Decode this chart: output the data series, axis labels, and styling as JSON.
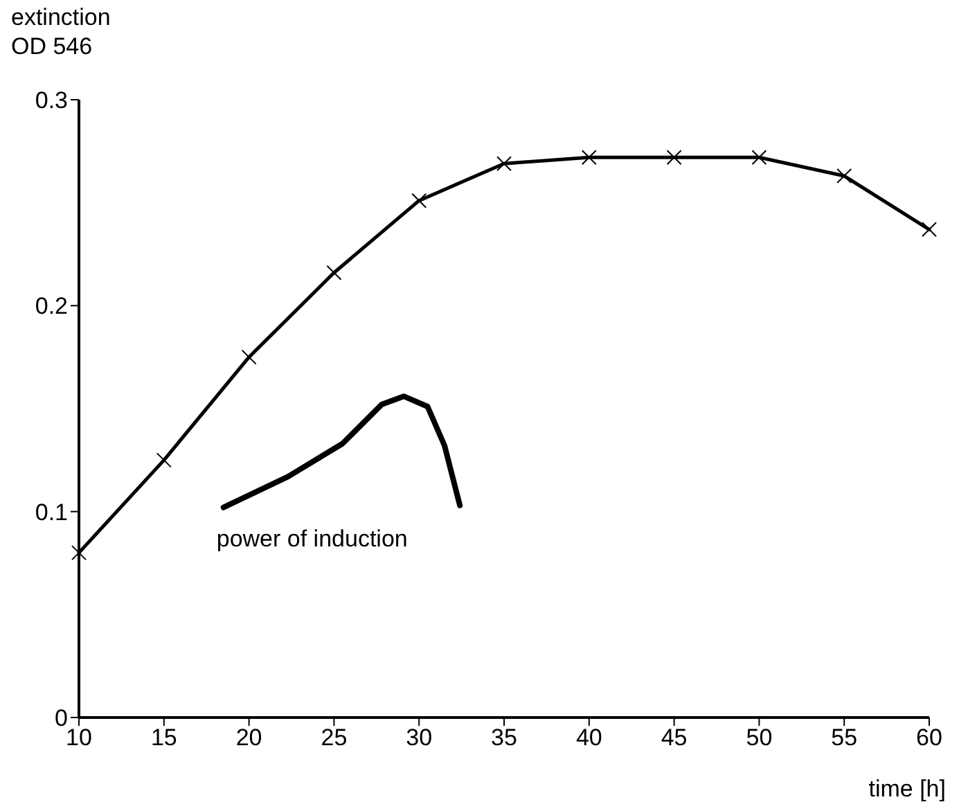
{
  "chart_data": {
    "type": "line",
    "ylabel": "extinction OD 546",
    "xlabel": "time [h]",
    "xlim": [
      10,
      60
    ],
    "xticks": [
      10,
      15,
      20,
      25,
      30,
      35,
      40,
      45,
      50,
      55,
      60
    ],
    "ylim": [
      0,
      0.3
    ],
    "yticks": [
      0,
      0.1,
      0.2,
      0.3
    ],
    "marker": "cross",
    "line_style": "solid",
    "series": [
      {
        "color": "#000000",
        "x": [
          10,
          15,
          20,
          25,
          30,
          35,
          40,
          45,
          50,
          55,
          60
        ],
        "values": [
          0.08,
          0.125,
          0.175,
          0.216,
          0.251,
          0.269,
          0.272,
          0.272,
          0.272,
          0.263,
          0.237
        ]
      },
      {
        "name": "power of induction",
        "color": "#000000",
        "marker": "none",
        "x": [
          18.5,
          22.3,
          25.5,
          27.8,
          29.1,
          30.5,
          31.5,
          32.4
        ],
        "values": [
          0.102,
          0.117,
          0.133,
          0.152,
          0.156,
          0.151,
          0.132,
          0.103
        ]
      }
    ]
  }
}
